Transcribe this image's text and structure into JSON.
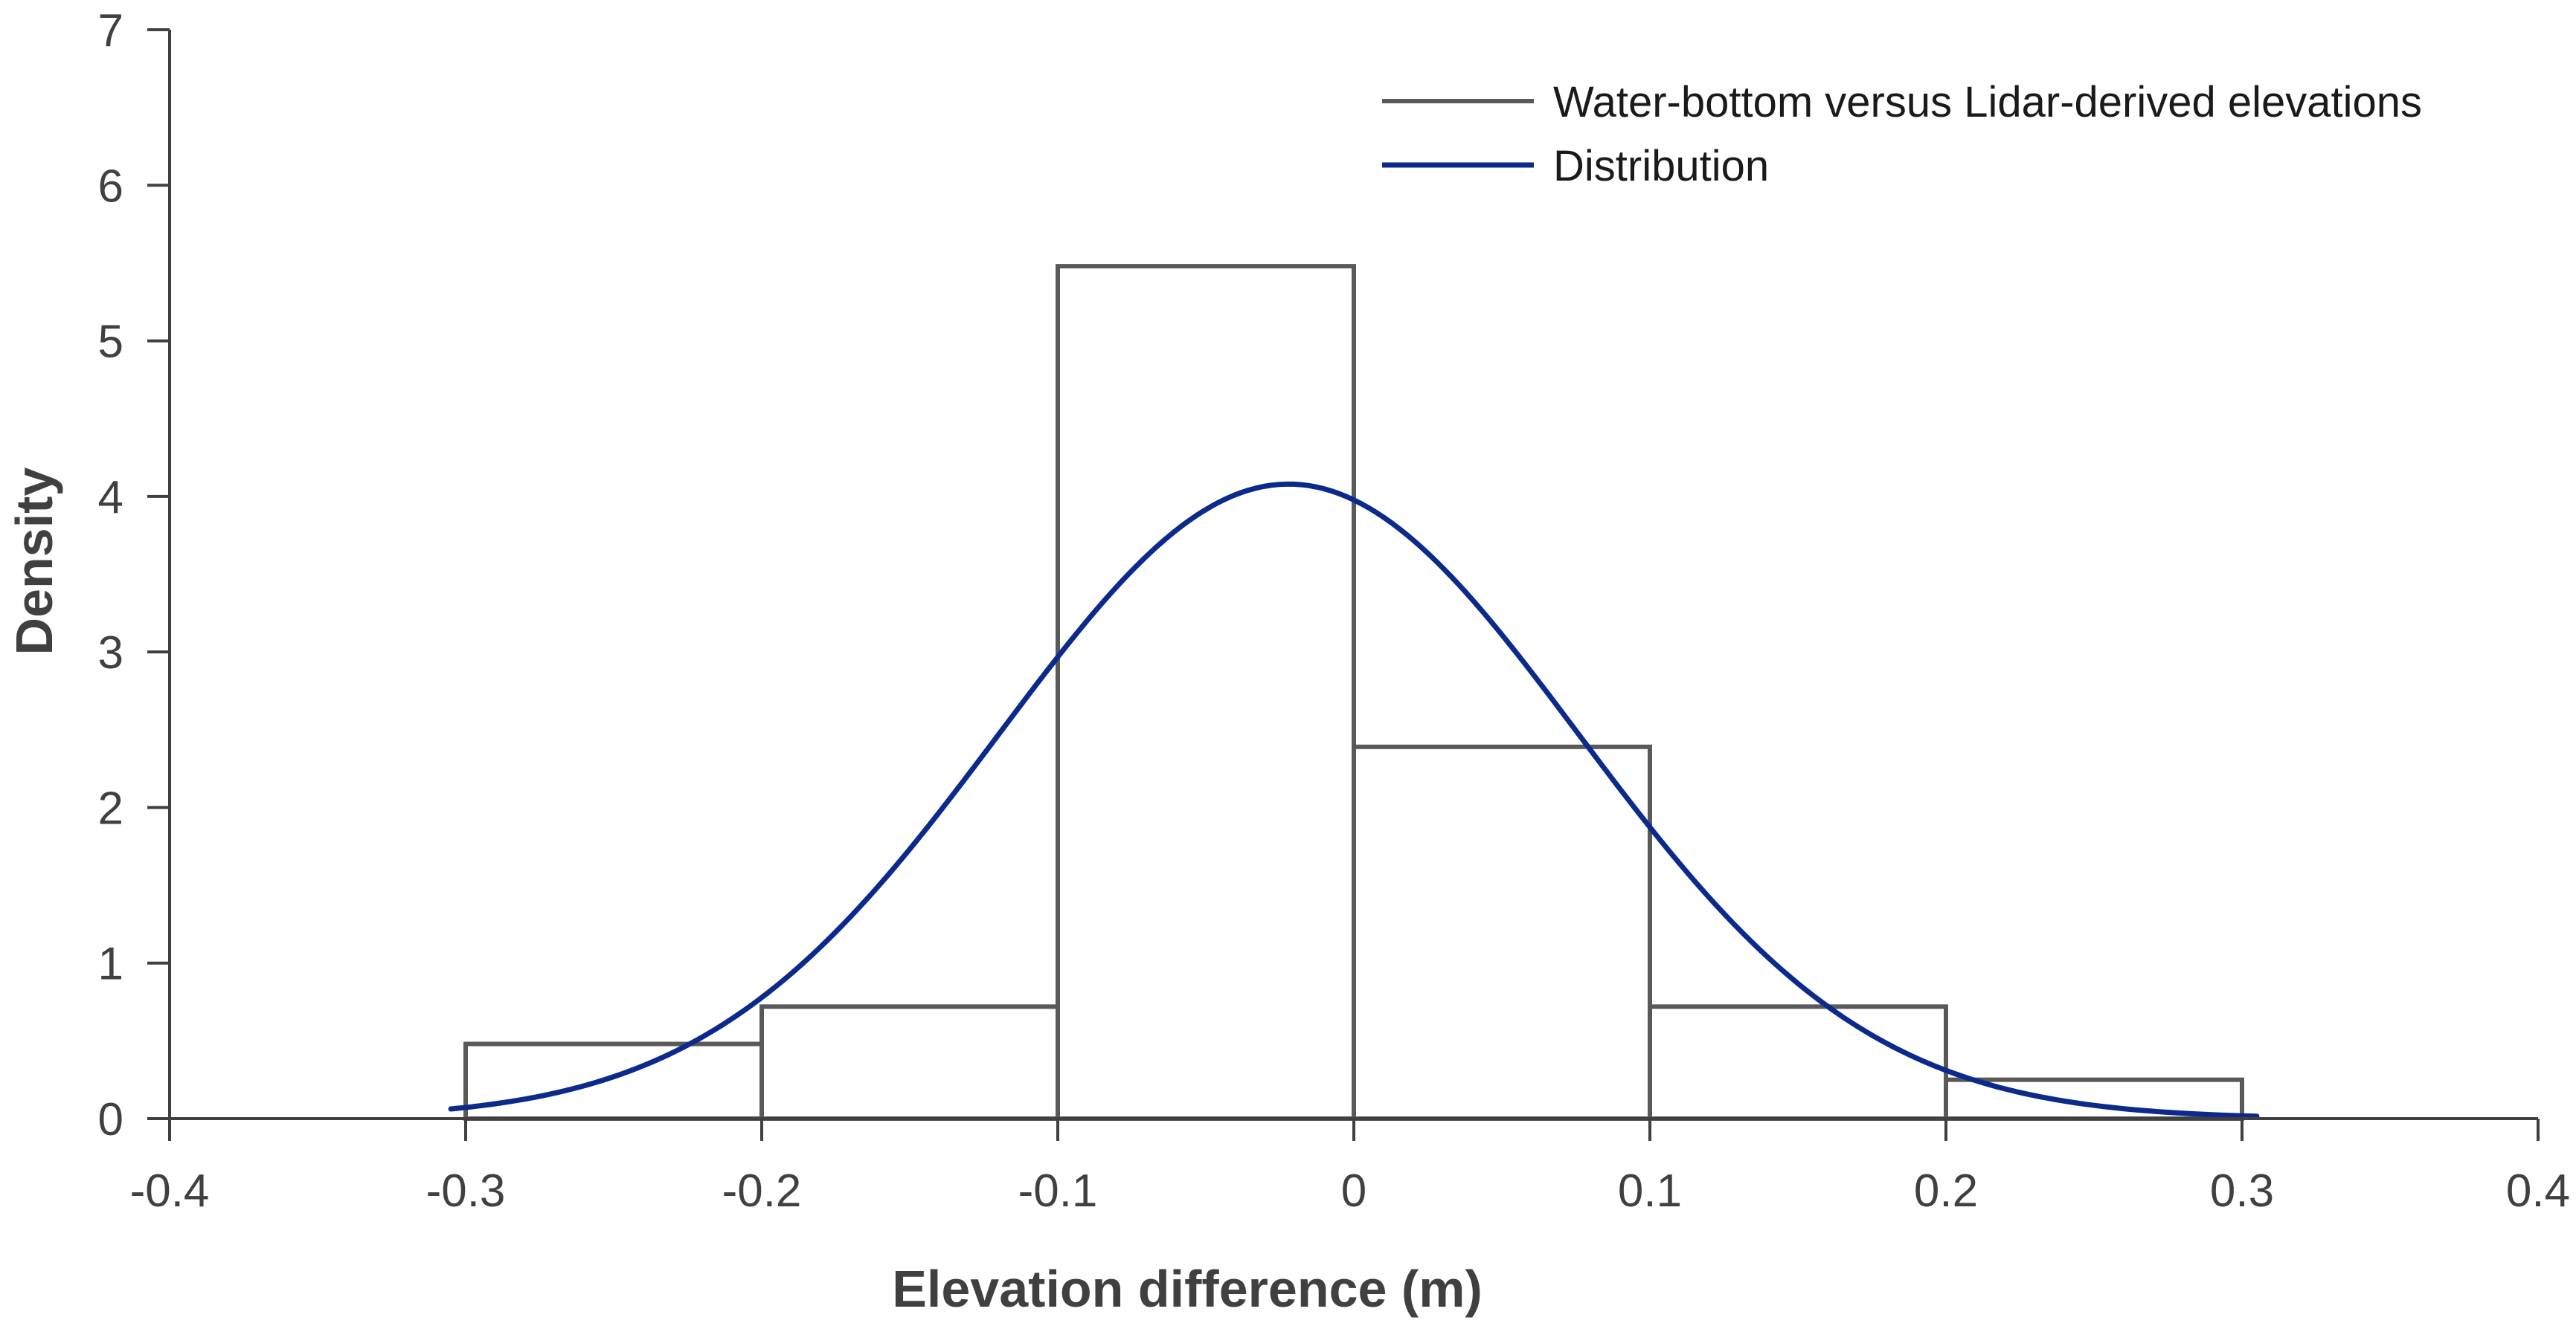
{
  "chart_data": {
    "type": "histogram",
    "title": "",
    "xlabel": "Elevation difference (m)",
    "ylabel": "Density",
    "xlim": [
      -0.4,
      0.4
    ],
    "ylim": [
      0,
      7
    ],
    "xticks": [
      -0.4,
      -0.3,
      -0.2,
      -0.1,
      0,
      0.1,
      0.2,
      0.3,
      0.4
    ],
    "xtick_labels": [
      "-0.4",
      "-0.3",
      "-0.2",
      "-0.1",
      "0",
      "0.1",
      "0.2",
      "0.3",
      "0.4"
    ],
    "yticks": [
      0,
      1,
      2,
      3,
      4,
      5,
      6,
      7
    ],
    "ytick_labels": [
      "0",
      "1",
      "2",
      "3",
      "4",
      "5",
      "6",
      "7"
    ],
    "grid": false,
    "legend_position": "top-right",
    "series": [
      {
        "name": "Water-bottom versus Lidar-derived elevations",
        "kind": "histogram",
        "color": "#595959",
        "bins": [
          {
            "from": -0.3,
            "to": -0.2,
            "density": 0.48
          },
          {
            "from": -0.2,
            "to": -0.1,
            "density": 0.72
          },
          {
            "from": -0.1,
            "to": 0.0,
            "density": 5.48
          },
          {
            "from": 0.0,
            "to": 0.1,
            "density": 2.39
          },
          {
            "from": 0.1,
            "to": 0.2,
            "density": 0.72
          },
          {
            "from": 0.2,
            "to": 0.3,
            "density": 0.25
          }
        ]
      },
      {
        "name": "Distribution",
        "kind": "normal-curve",
        "color": "#0b2a8c",
        "mean": -0.022,
        "sd": 0.0978,
        "x_range": [
          -0.305,
          0.305
        ]
      }
    ]
  }
}
